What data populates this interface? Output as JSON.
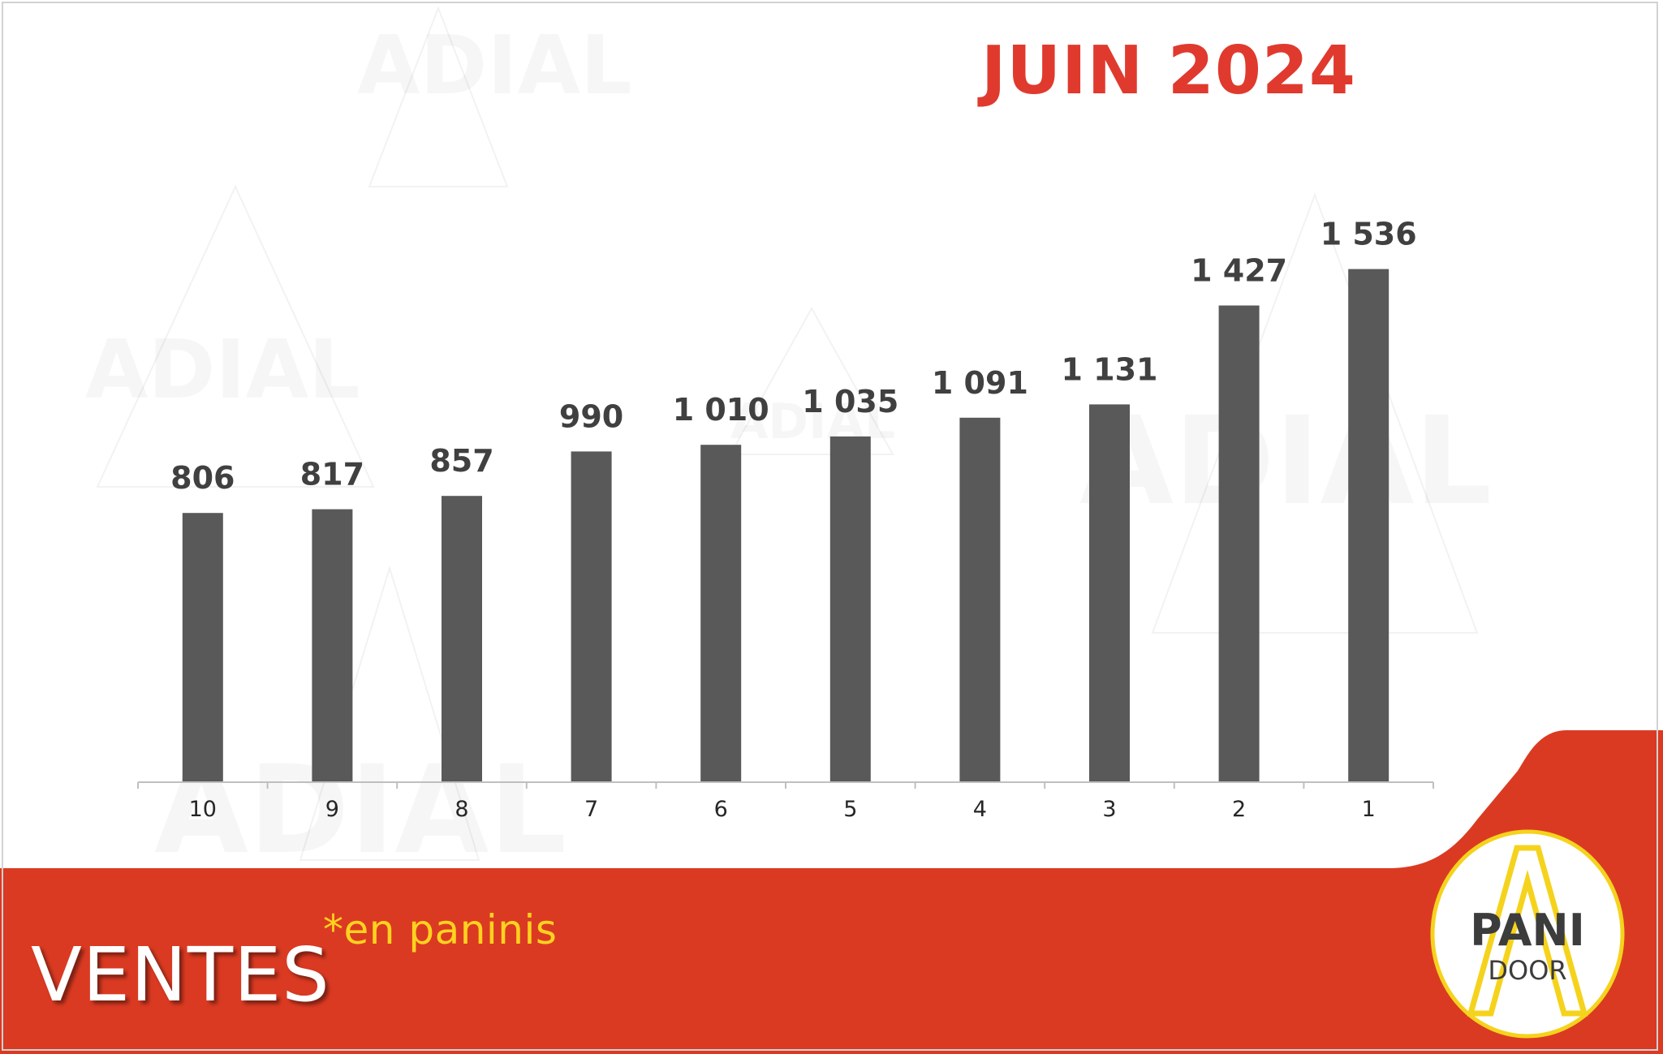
{
  "title": "JUIN 2024",
  "colors": {
    "title": "#e03a2e",
    "bar": "#595959",
    "band": "#db3a22",
    "note": "#ffd21f",
    "logo_ring": "#f5d31d",
    "logo_text": "#3c3c3c"
  },
  "watermark": {
    "text": "ADIAL"
  },
  "footer": {
    "title": "VENTES",
    "note": "*en paninis"
  },
  "logo": {
    "line1": "PANI",
    "line2": "DOOR"
  },
  "chart_data": {
    "type": "bar",
    "categories": [
      "10",
      "9",
      "8",
      "7",
      "6",
      "5",
      "4",
      "3",
      "2",
      "1"
    ],
    "values": [
      806,
      817,
      857,
      990,
      1010,
      1035,
      1091,
      1131,
      1427,
      1536
    ],
    "value_labels": [
      "806",
      "817",
      "857",
      "990",
      "1 010",
      "1 035",
      "1 091",
      "1 131",
      "1 427",
      "1 536"
    ],
    "ylim": [
      0,
      1650
    ],
    "grid": false,
    "legend": "none",
    "xlabel": "",
    "ylabel": ""
  }
}
